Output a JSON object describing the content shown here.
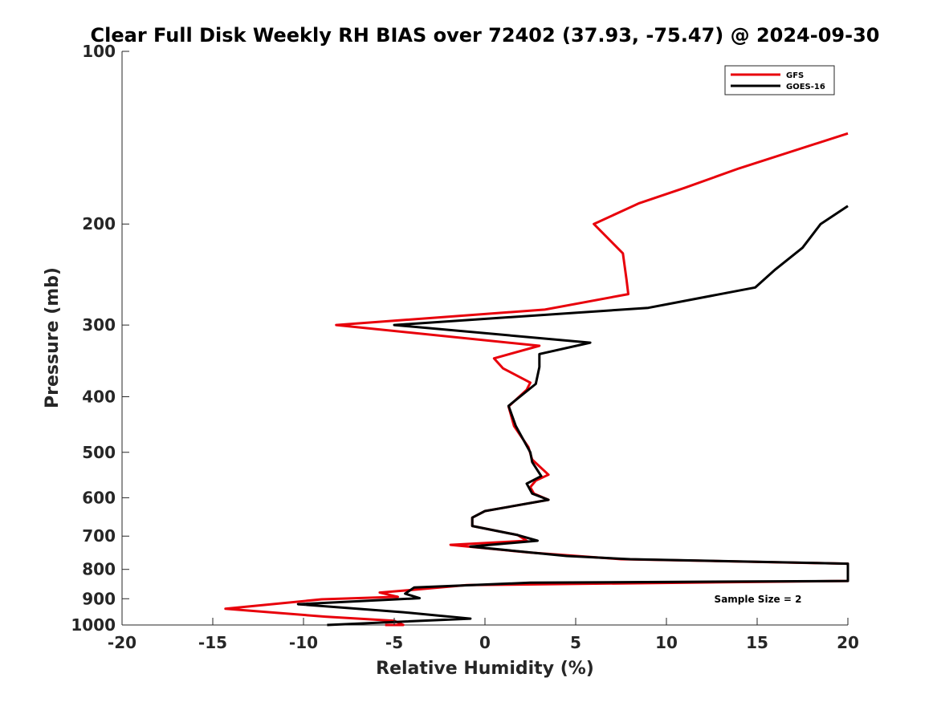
{
  "chart_data": {
    "type": "line",
    "title": "Clear Full Disk Weekly RH BIAS over 72402 (37.93, -75.47) @ 2024-09-30",
    "xlabel": "Relative Humidity (%)",
    "ylabel": "Pressure (mb)",
    "xlim": [
      -20,
      20
    ],
    "ylim": [
      100,
      1000
    ],
    "yscale": "log",
    "y_reversed": true,
    "xticks": [
      -20,
      -15,
      -10,
      -5,
      0,
      5,
      10,
      15,
      20
    ],
    "xtick_labels": [
      "-20",
      "-15",
      "-10",
      "-5",
      "0",
      "5",
      "10",
      "15",
      "20"
    ],
    "yticks": [
      100,
      200,
      300,
      400,
      500,
      600,
      700,
      800,
      900,
      1000
    ],
    "ytick_labels": [
      "100",
      "200",
      "300",
      "400",
      "500",
      "600",
      "700",
      "800",
      "900",
      "1000"
    ],
    "grid": false,
    "legend_position": "top-right",
    "annotation": "Sample Size = 2",
    "series": [
      {
        "name": "GFS",
        "color": "#e8000b",
        "points": [
          [
            20,
            139
          ],
          [
            14,
            160
          ],
          [
            11,
            173
          ],
          [
            8.5,
            184
          ],
          [
            6,
            200
          ],
          [
            7.6,
            225
          ],
          [
            7.8,
            250
          ],
          [
            7.9,
            265
          ],
          [
            3.3,
            282
          ],
          [
            -8.2,
            300
          ],
          [
            3,
            326
          ],
          [
            0.5,
            343
          ],
          [
            1,
            357
          ],
          [
            2.5,
            378
          ],
          [
            2.3,
            389
          ],
          [
            1.3,
            416
          ],
          [
            1.6,
            450
          ],
          [
            2.4,
            490
          ],
          [
            2.6,
            515
          ],
          [
            3.5,
            547
          ],
          [
            2.8,
            560
          ],
          [
            2.5,
            575
          ],
          [
            2.7,
            590
          ],
          [
            3.5,
            605
          ],
          [
            0,
            633
          ],
          [
            -0.7,
            650
          ],
          [
            -0.7,
            672
          ],
          [
            1.8,
            697
          ],
          [
            2.3,
            713
          ],
          [
            -1.9,
            725
          ],
          [
            2.5,
            748
          ],
          [
            7.5,
            768
          ],
          [
            20,
            782
          ],
          [
            20,
            838
          ],
          [
            -1,
            852
          ],
          [
            -3.5,
            866
          ],
          [
            -5.8,
            878
          ],
          [
            -4.8,
            893
          ],
          [
            -9,
            902
          ],
          [
            -14.3,
            937
          ],
          [
            -8.8,
            967
          ],
          [
            -5,
            983
          ],
          [
            -4.5,
            1000
          ],
          [
            -5.5,
            1000
          ]
        ]
      },
      {
        "name": "GOES-16",
        "color": "#000000",
        "points": [
          [
            20,
            186
          ],
          [
            18.5,
            200
          ],
          [
            17.5,
            220
          ],
          [
            16,
            240
          ],
          [
            14.9,
            258
          ],
          [
            9,
            280
          ],
          [
            -5,
            300
          ],
          [
            5.8,
            322
          ],
          [
            3,
            337
          ],
          [
            3,
            355
          ],
          [
            2.8,
            380
          ],
          [
            1.3,
            415
          ],
          [
            1.7,
            450
          ],
          [
            2.5,
            500
          ],
          [
            2.6,
            520
          ],
          [
            3.1,
            550
          ],
          [
            2.3,
            567
          ],
          [
            2.6,
            590
          ],
          [
            3.5,
            605
          ],
          [
            0,
            633
          ],
          [
            -0.7,
            650
          ],
          [
            -0.7,
            672
          ],
          [
            1.8,
            697
          ],
          [
            2.9,
            713
          ],
          [
            -0.8,
            730
          ],
          [
            4.5,
            758
          ],
          [
            8,
            768
          ],
          [
            20,
            782
          ],
          [
            20,
            838
          ],
          [
            2.5,
            844
          ],
          [
            -3.9,
            860
          ],
          [
            -4.4,
            882
          ],
          [
            -3.6,
            898
          ],
          [
            -10.3,
            920
          ],
          [
            -4.5,
            950
          ],
          [
            -0.8,
            975
          ],
          [
            -8.7,
            1000
          ]
        ]
      }
    ]
  }
}
